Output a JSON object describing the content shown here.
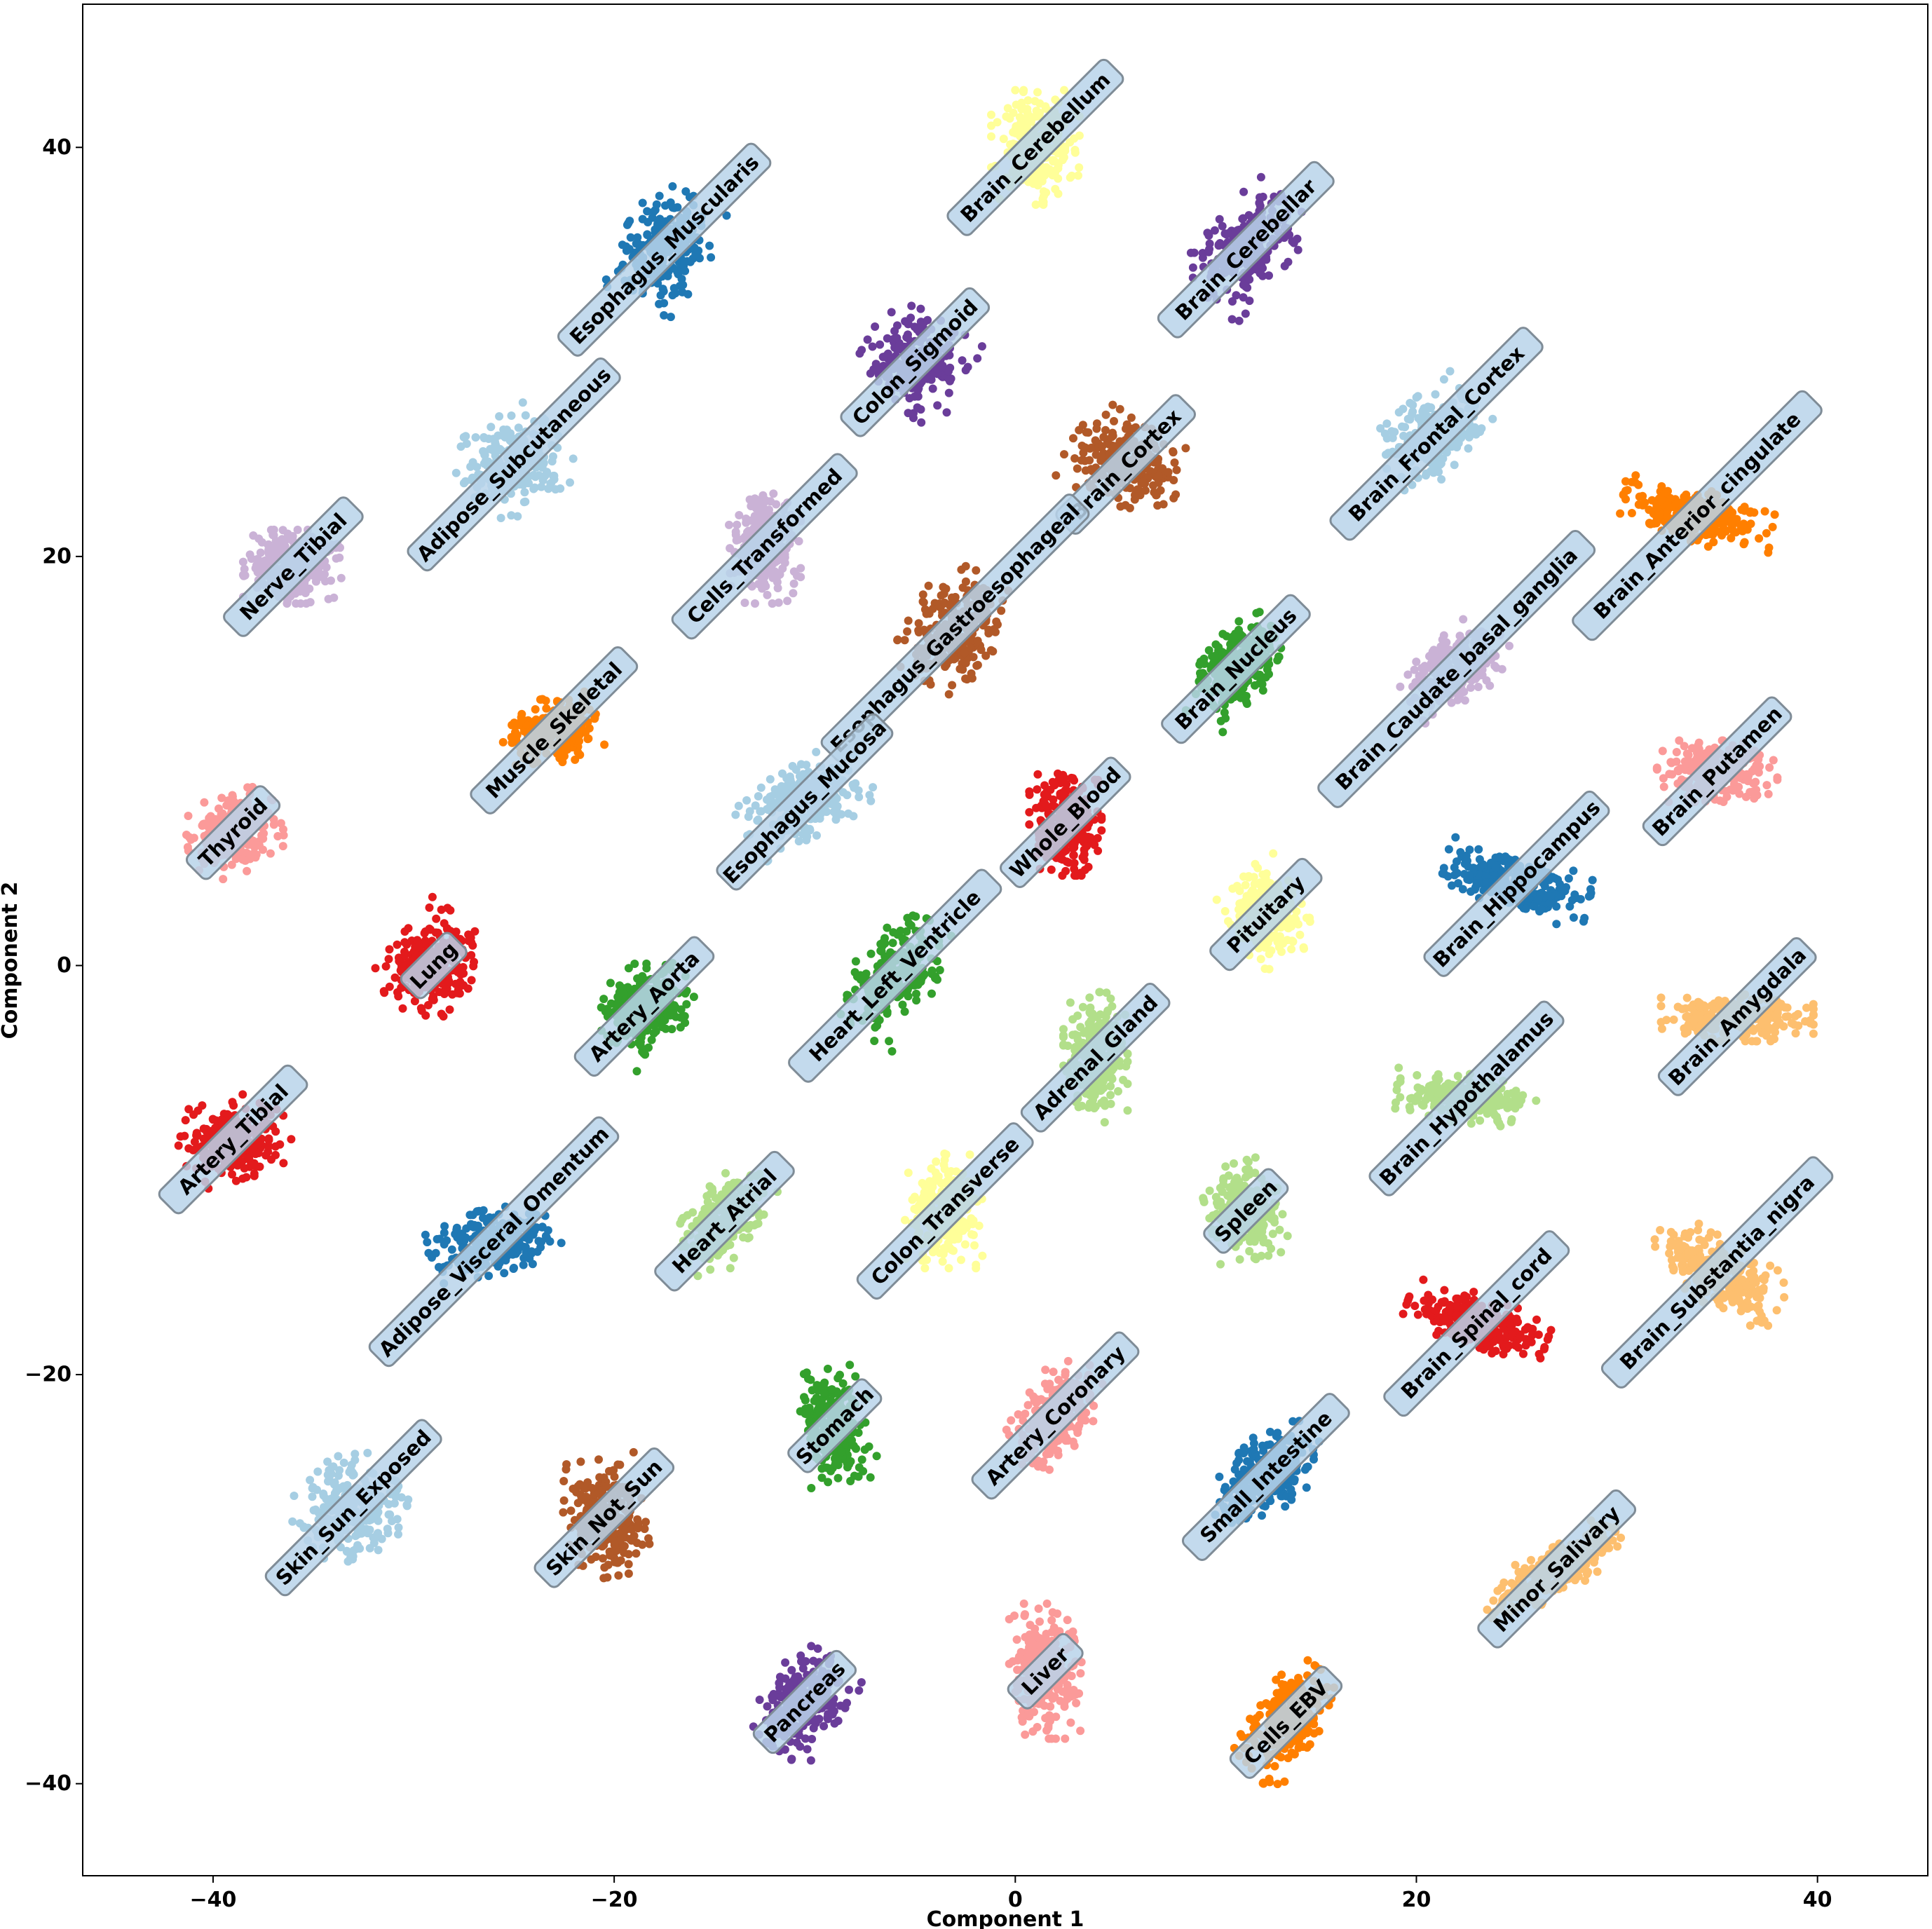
{
  "chart_data": {
    "type": "scatter",
    "xlabel": "Component 1",
    "ylabel": "Component 2",
    "xlim": [
      -46.5,
      45.5
    ],
    "ylim": [
      -44.5,
      47
    ],
    "x_ticks": [
      -40,
      -20,
      0,
      20,
      40
    ],
    "y_ticks": [
      -40,
      -20,
      0,
      20,
      40
    ],
    "x_tick_labels": [
      "−40",
      "−20",
      "0",
      "20",
      "40"
    ],
    "y_tick_labels": [
      "−40",
      "−20",
      "0",
      "20",
      "40"
    ],
    "grid": false,
    "clusters": [
      {
        "name": "Brain_Cerebellum",
        "x": 1,
        "y": 40,
        "spread_x": 2.2,
        "spread_y": 2.8,
        "angle": 0,
        "color": "#ffff99"
      },
      {
        "name": "Esophagus_Muscularis",
        "x": -17.5,
        "y": 35,
        "spread_x": 3.0,
        "spread_y": 2.2,
        "angle": 60,
        "color": "#1f78b4"
      },
      {
        "name": "Brain_Cerebellar",
        "x": 11.5,
        "y": 35,
        "spread_x": 3.2,
        "spread_y": 2.0,
        "angle": 50,
        "color": "#6a3d9a"
      },
      {
        "name": "Colon_Sigmoid",
        "x": -5,
        "y": 29.5,
        "spread_x": 2.4,
        "spread_y": 2.6,
        "angle": 60,
        "color": "#6a3d9a"
      },
      {
        "name": "Adipose_Subcutaneous",
        "x": -25,
        "y": 24.5,
        "spread_x": 2.7,
        "spread_y": 2.4,
        "angle": 30,
        "color": "#a6cee3"
      },
      {
        "name": "Brain_Frontal_Cortex",
        "x": 21,
        "y": 26,
        "spread_x": 3.0,
        "spread_y": 2.0,
        "angle": 40,
        "color": "#a6cee3"
      },
      {
        "name": "Brain_Cortex",
        "x": 5.5,
        "y": 24.5,
        "spread_x": 2.2,
        "spread_y": 2.9,
        "angle": 60,
        "color": "#b15928"
      },
      {
        "name": "Brain_Anterior_cingulate",
        "x": 34,
        "y": 22,
        "spread_x": 3.8,
        "spread_y": 1.4,
        "angle": -10,
        "color": "#ff7f00"
      },
      {
        "name": "Nerve_Tibial",
        "x": -36,
        "y": 19.5,
        "spread_x": 2.5,
        "spread_y": 1.8,
        "angle": 0,
        "color": "#cab2d6"
      },
      {
        "name": "Cells_Transformed",
        "x": -12.5,
        "y": 20.5,
        "spread_x": 1.8,
        "spread_y": 2.8,
        "angle": 0,
        "color": "#cab2d6"
      },
      {
        "name": "Esophagus_Gastroesophageal",
        "x": -3,
        "y": 16.5,
        "spread_x": 3.0,
        "spread_y": 2.2,
        "angle": 60,
        "color": "#b15928"
      },
      {
        "name": "Brain_Nucleus",
        "x": 11,
        "y": 14.5,
        "spread_x": 3.0,
        "spread_y": 1.7,
        "angle": 60,
        "color": "#33a02c"
      },
      {
        "name": "Brain_Caudate_basal_ganglia",
        "x": 22,
        "y": 14.5,
        "spread_x": 2.8,
        "spread_y": 1.8,
        "angle": 35,
        "color": "#cab2d6"
      },
      {
        "name": "Muscle_Skeletal",
        "x": -23,
        "y": 11.5,
        "spread_x": 2.6,
        "spread_y": 1.6,
        "angle": 10,
        "color": "#ff7f00"
      },
      {
        "name": "Brain_Putamen",
        "x": 35,
        "y": 9.5,
        "spread_x": 3.0,
        "spread_y": 1.5,
        "angle": 0,
        "color": "#fb9a99"
      },
      {
        "name": "Esophagus_Mucosa",
        "x": -10.5,
        "y": 8,
        "spread_x": 3.3,
        "spread_y": 1.9,
        "angle": 30,
        "color": "#a6cee3"
      },
      {
        "name": "Thyroid",
        "x": -39,
        "y": 6.5,
        "spread_x": 2.4,
        "spread_y": 2.0,
        "angle": 20,
        "color": "#fb9a99"
      },
      {
        "name": "Whole_Blood",
        "x": 2.5,
        "y": 7,
        "spread_x": 1.8,
        "spread_y": 2.6,
        "angle": 0,
        "color": "#e31a1c"
      },
      {
        "name": "Brain_Hippocampus",
        "x": 25,
        "y": 4,
        "spread_x": 3.7,
        "spread_y": 1.4,
        "angle": -15,
        "color": "#1f78b4"
      },
      {
        "name": "Pituitary",
        "x": 12.5,
        "y": 2.5,
        "spread_x": 1.8,
        "spread_y": 2.4,
        "angle": 30,
        "color": "#ffff99"
      },
      {
        "name": "Lung",
        "x": -29,
        "y": 0,
        "spread_x": 2.6,
        "spread_y": 2.2,
        "angle": 50,
        "color": "#e31a1c"
      },
      {
        "name": "Artery_Aorta",
        "x": -18.5,
        "y": -2,
        "spread_x": 2.5,
        "spread_y": 2.0,
        "angle": 45,
        "color": "#33a02c"
      },
      {
        "name": "Heart_Left_Ventricle",
        "x": -6,
        "y": -0.5,
        "spread_x": 3.2,
        "spread_y": 2.0,
        "angle": 55,
        "color": "#33a02c"
      },
      {
        "name": "Brain_Amygdala",
        "x": 36,
        "y": -2.5,
        "spread_x": 3.8,
        "spread_y": 1.2,
        "angle": 0,
        "color": "#fdbf6f"
      },
      {
        "name": "Adrenal_Gland",
        "x": 4,
        "y": -4.5,
        "spread_x": 1.6,
        "spread_y": 3.2,
        "angle": 0,
        "color": "#b2df8a"
      },
      {
        "name": "Brain_Hypothalamus",
        "x": 22.5,
        "y": -6.5,
        "spread_x": 3.5,
        "spread_y": 1.2,
        "angle": -5,
        "color": "#b2df8a"
      },
      {
        "name": "Artery_Tibial",
        "x": -39,
        "y": -8.5,
        "spread_x": 2.8,
        "spread_y": 2.0,
        "angle": 15,
        "color": "#e31a1c"
      },
      {
        "name": "Heart_Atrial",
        "x": -14.5,
        "y": -12.5,
        "spread_x": 2.9,
        "spread_y": 1.7,
        "angle": 50,
        "color": "#b2df8a"
      },
      {
        "name": "Colon_Transverse",
        "x": -3.5,
        "y": -12,
        "spread_x": 2.0,
        "spread_y": 2.8,
        "angle": 0,
        "color": "#ffff99"
      },
      {
        "name": "Spleen",
        "x": 11.5,
        "y": -12,
        "spread_x": 1.9,
        "spread_y": 2.4,
        "angle": 15,
        "color": "#b2df8a"
      },
      {
        "name": "Adipose_Visceral_Omentum",
        "x": -26,
        "y": -13.5,
        "spread_x": 3.3,
        "spread_y": 1.6,
        "angle": 10,
        "color": "#1f78b4"
      },
      {
        "name": "Brain_Substantia_nigra",
        "x": 35,
        "y": -15,
        "spread_x": 3.5,
        "spread_y": 1.6,
        "angle": -30,
        "color": "#fdbf6f"
      },
      {
        "name": "Brain_Spinal_cord",
        "x": 23,
        "y": -17.5,
        "spread_x": 3.6,
        "spread_y": 1.4,
        "angle": -20,
        "color": "#e31a1c"
      },
      {
        "name": "Stomach",
        "x": -9,
        "y": -22.5,
        "spread_x": 1.8,
        "spread_y": 2.8,
        "angle": 10,
        "color": "#33a02c"
      },
      {
        "name": "Artery_Coronary",
        "x": 2,
        "y": -22,
        "spread_x": 3.0,
        "spread_y": 1.7,
        "angle": 55,
        "color": "#fb9a99"
      },
      {
        "name": "Small_Intestine",
        "x": 12.5,
        "y": -25,
        "spread_x": 3.1,
        "spread_y": 1.8,
        "angle": 45,
        "color": "#1f78b4"
      },
      {
        "name": "Skin_Sun_Exposed",
        "x": -33,
        "y": -26.5,
        "spread_x": 2.8,
        "spread_y": 2.5,
        "angle": 45,
        "color": "#a6cee3"
      },
      {
        "name": "Skin_Not_Sun",
        "x": -20.5,
        "y": -27,
        "spread_x": 2.0,
        "spread_y": 2.9,
        "angle": 10,
        "color": "#b15928"
      },
      {
        "name": "Minor_Salivary",
        "x": 27,
        "y": -29.5,
        "spread_x": 4.0,
        "spread_y": 1.2,
        "angle": 30,
        "color": "#fdbf6f"
      },
      {
        "name": "Pancreas",
        "x": -10.5,
        "y": -36,
        "spread_x": 2.7,
        "spread_y": 1.9,
        "angle": 55,
        "color": "#6a3d9a"
      },
      {
        "name": "Liver",
        "x": 1.5,
        "y": -34.5,
        "spread_x": 1.8,
        "spread_y": 3.3,
        "angle": 0,
        "color": "#fb9a99"
      },
      {
        "name": "Cells_EBV",
        "x": 13.5,
        "y": -37,
        "spread_x": 3.1,
        "spread_y": 1.6,
        "angle": 55,
        "color": "#ff7f00"
      }
    ]
  }
}
